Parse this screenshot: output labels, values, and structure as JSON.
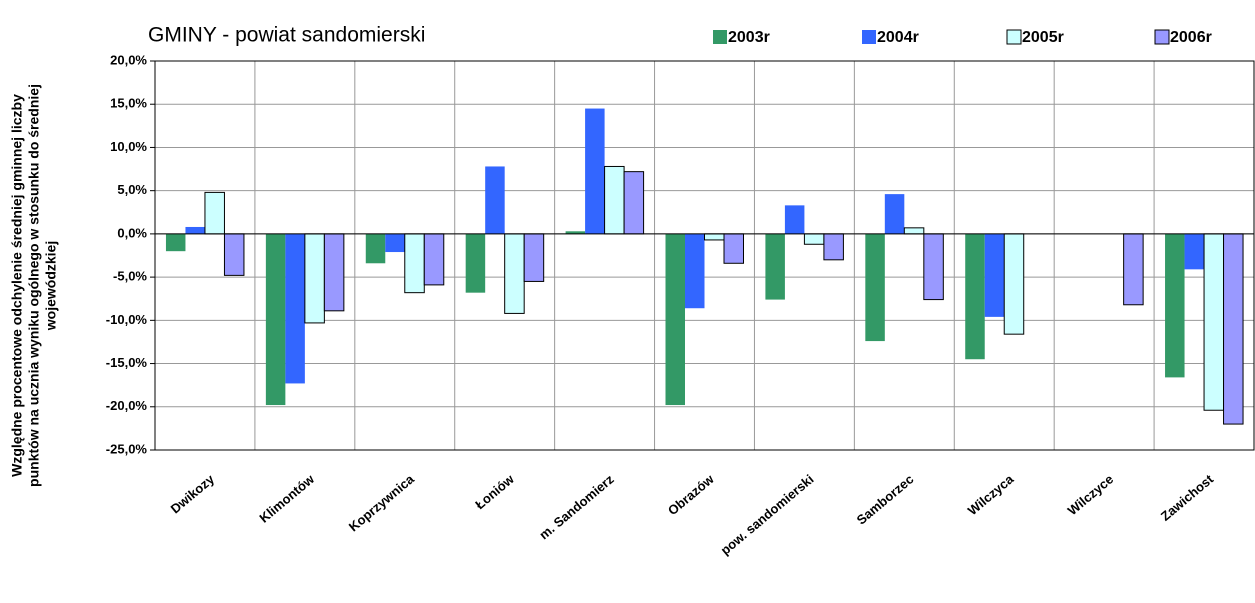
{
  "chart_data": {
    "type": "bar",
    "title": "GMINY -  powiat sandomierski",
    "ylabel_lines": [
      "Względne procentowe odchylenie średniej gminnej liczby",
      "punktów na ucznia wyniku ogólnego w stosunku do średniej",
      "wojewódzkiej"
    ],
    "categories": [
      "Dwikozy",
      "Klimontów",
      "Koprzywnica",
      "Łoniów",
      "m. Sandomierz",
      "Obrazów",
      "pow. sandomierski",
      "Samborzec",
      "Wilczyca",
      "Wilczyce",
      "Zawichost"
    ],
    "series": [
      {
        "name": "2003r",
        "color": "#339966",
        "values": [
          -2.0,
          -19.8,
          -3.4,
          -6.8,
          0.3,
          -19.8,
          -7.6,
          -12.4,
          -14.5,
          null,
          -16.6
        ]
      },
      {
        "name": "2004r",
        "color": "#3366ff",
        "values": [
          0.8,
          -17.3,
          -2.1,
          7.8,
          14.5,
          -8.6,
          3.3,
          4.6,
          -9.6,
          null,
          -4.1
        ]
      },
      {
        "name": "2005r",
        "color": "#ccffff",
        "values": [
          4.8,
          -10.3,
          -6.8,
          -9.2,
          7.8,
          -0.7,
          -1.2,
          0.7,
          -11.6,
          null,
          -20.4
        ]
      },
      {
        "name": "2006r",
        "color": "#9999ff",
        "values": [
          -4.8,
          -8.9,
          -5.9,
          -5.5,
          7.2,
          -3.4,
          -3.0,
          -7.6,
          null,
          -8.2,
          -22.0
        ]
      }
    ],
    "ylim": [
      -25,
      20
    ],
    "yticks": [
      {
        "value": -25,
        "label": "-25,0%"
      },
      {
        "value": -20,
        "label": "-20,0%"
      },
      {
        "value": -15,
        "label": "-15,0%"
      },
      {
        "value": -10,
        "label": "-10,0%"
      },
      {
        "value": -5,
        "label": "-5,0%"
      },
      {
        "value": 0,
        "label": "0,0%"
      },
      {
        "value": 5,
        "label": "5,0%"
      },
      {
        "value": 10,
        "label": "10,0%"
      },
      {
        "value": 15,
        "label": "15,0%"
      },
      {
        "value": 20,
        "label": "20,0%"
      }
    ],
    "grid": true
  }
}
